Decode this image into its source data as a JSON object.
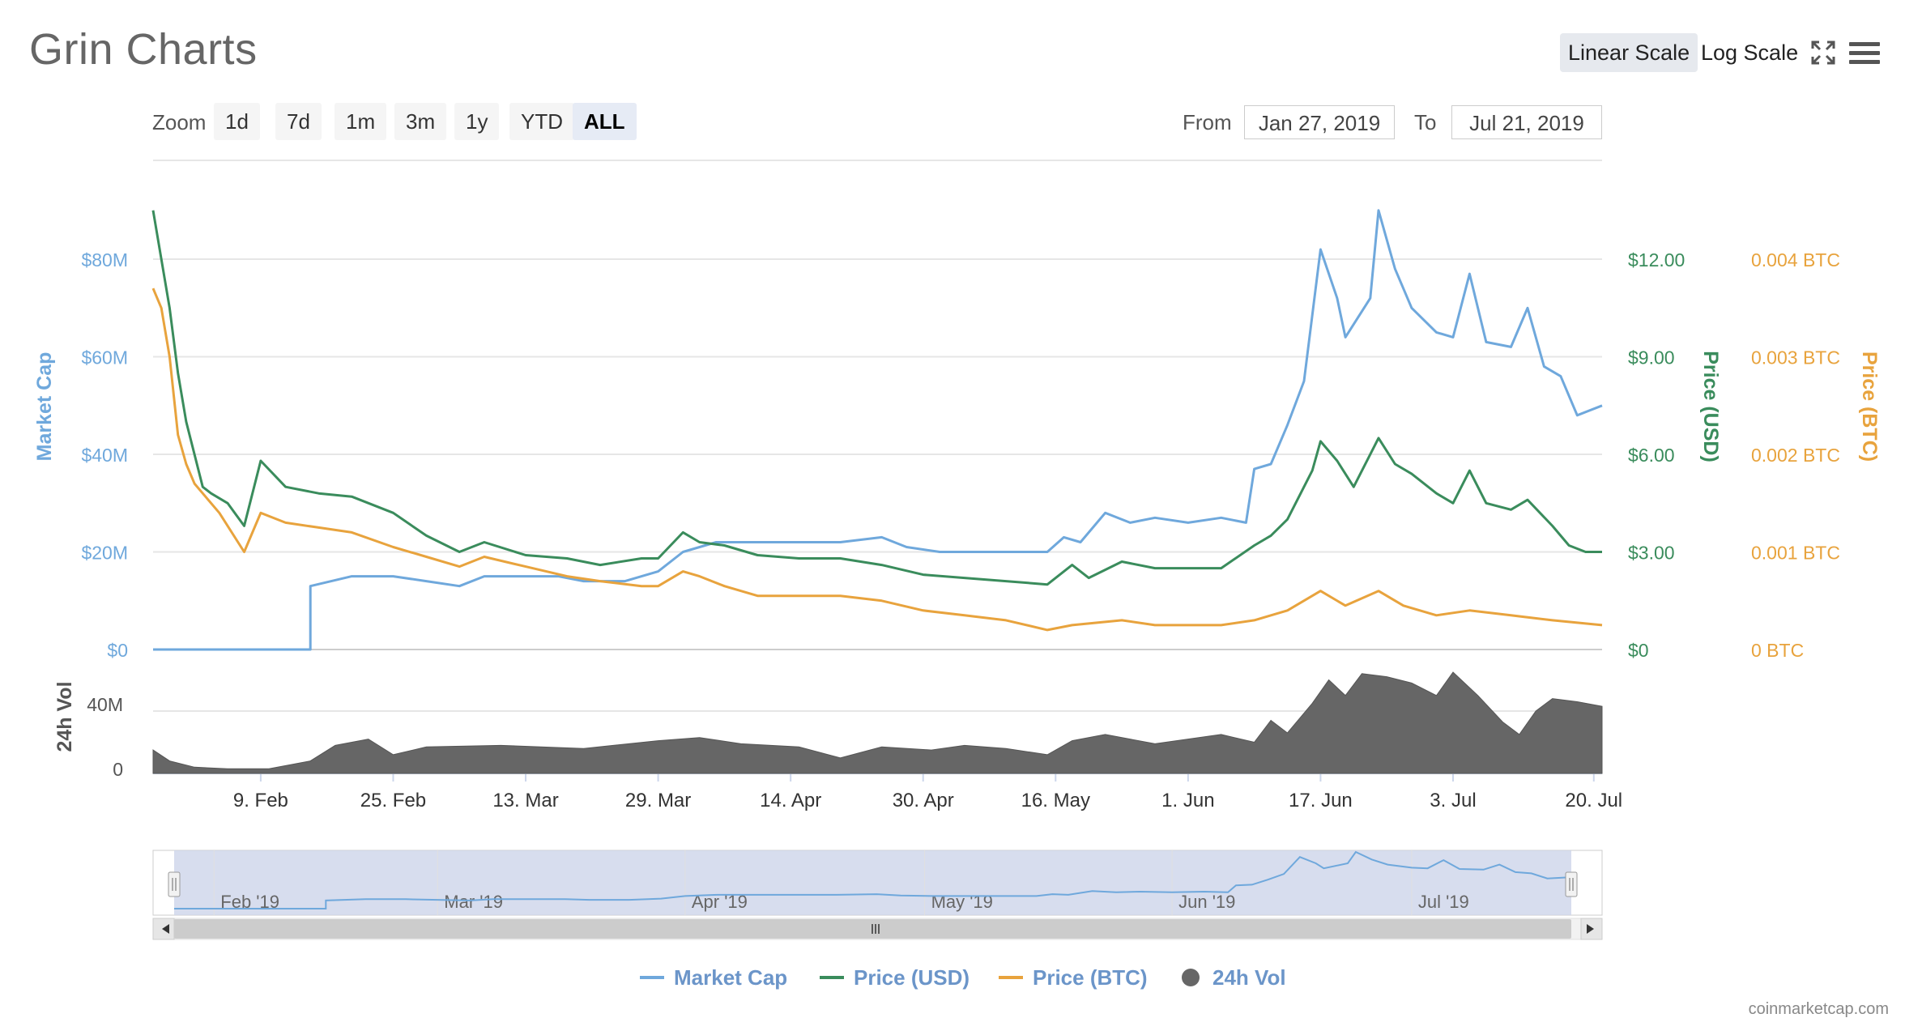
{
  "header": {
    "title": "Grin Charts",
    "linear_label": "Linear Scale",
    "log_label": "Log Scale"
  },
  "zoom": {
    "label": "Zoom",
    "buttons": [
      "1d",
      "7d",
      "1m",
      "3m",
      "1y",
      "YTD",
      "ALL"
    ],
    "active": "ALL"
  },
  "range": {
    "from_label": "From",
    "from_value": "Jan 27, 2019",
    "to_label": "To",
    "to_value": "Jul 21, 2019"
  },
  "credit": "coinmarketcap.com",
  "colors": {
    "market_cap": "#6fa8dc",
    "price_usd": "#3a8c5c",
    "price_btc": "#e8a33d",
    "volume": "#666666",
    "navigator_fill": "#cdd5ea"
  },
  "chart_data": {
    "type": "line",
    "x_range": [
      "2019-01-27",
      "2019-07-21"
    ],
    "x_ticks": [
      "9. Feb",
      "25. Feb",
      "13. Mar",
      "29. Mar",
      "14. Apr",
      "30. Apr",
      "16. May",
      "1. Jun",
      "17. Jun",
      "3. Jul",
      "20. Jul"
    ],
    "x_tick_dates": [
      "2019-02-09",
      "2019-02-25",
      "2019-03-13",
      "2019-03-29",
      "2019-04-14",
      "2019-04-30",
      "2019-05-16",
      "2019-06-01",
      "2019-06-17",
      "2019-07-03",
      "2019-07-20"
    ],
    "axes": {
      "market_cap": {
        "label": "Market Cap",
        "range": [
          0,
          80000000
        ],
        "ticks": [
          "$0",
          "$20M",
          "$40M",
          "$60M",
          "$80M"
        ]
      },
      "price_usd": {
        "label": "Price (USD)",
        "range": [
          0,
          12
        ],
        "ticks": [
          "$0",
          "$3.00",
          "$6.00",
          "$9.00",
          "$12.00"
        ]
      },
      "price_btc": {
        "label": "Price (BTC)",
        "range": [
          0,
          0.004
        ],
        "ticks": [
          "0 BTC",
          "0.001 BTC",
          "0.002 BTC",
          "0.003 BTC",
          "0.004 BTC"
        ]
      },
      "volume": {
        "label": "24h Vol",
        "range": [
          0,
          40000000
        ],
        "ticks": [
          "0",
          "40M"
        ]
      }
    },
    "grid": true,
    "legend_position": "bottom",
    "series": [
      {
        "name": "Market Cap",
        "axis": "market_cap",
        "points": [
          [
            "2019-01-27",
            0
          ],
          [
            "2019-02-15",
            0
          ],
          [
            "2019-02-15",
            13000000
          ],
          [
            "2019-02-20",
            15000000
          ],
          [
            "2019-02-25",
            15000000
          ],
          [
            "2019-03-01",
            14000000
          ],
          [
            "2019-03-05",
            13000000
          ],
          [
            "2019-03-08",
            15000000
          ],
          [
            "2019-03-13",
            15000000
          ],
          [
            "2019-03-17",
            15000000
          ],
          [
            "2019-03-20",
            14000000
          ],
          [
            "2019-03-25",
            14000000
          ],
          [
            "2019-03-29",
            16000000
          ],
          [
            "2019-04-01",
            20000000
          ],
          [
            "2019-04-05",
            22000000
          ],
          [
            "2019-04-10",
            22000000
          ],
          [
            "2019-04-15",
            22000000
          ],
          [
            "2019-04-20",
            22000000
          ],
          [
            "2019-04-25",
            23000000
          ],
          [
            "2019-04-28",
            21000000
          ],
          [
            "2019-05-02",
            20000000
          ],
          [
            "2019-05-05",
            20000000
          ],
          [
            "2019-05-10",
            20000000
          ],
          [
            "2019-05-15",
            20000000
          ],
          [
            "2019-05-17",
            23000000
          ],
          [
            "2019-05-19",
            22000000
          ],
          [
            "2019-05-22",
            28000000
          ],
          [
            "2019-05-25",
            26000000
          ],
          [
            "2019-05-28",
            27000000
          ],
          [
            "2019-06-01",
            26000000
          ],
          [
            "2019-06-05",
            27000000
          ],
          [
            "2019-06-08",
            26000000
          ],
          [
            "2019-06-09",
            37000000
          ],
          [
            "2019-06-11",
            38000000
          ],
          [
            "2019-06-13",
            46000000
          ],
          [
            "2019-06-15",
            55000000
          ],
          [
            "2019-06-17",
            82000000
          ],
          [
            "2019-06-19",
            72000000
          ],
          [
            "2019-06-20",
            64000000
          ],
          [
            "2019-06-23",
            72000000
          ],
          [
            "2019-06-24",
            90000000
          ],
          [
            "2019-06-26",
            78000000
          ],
          [
            "2019-06-28",
            70000000
          ],
          [
            "2019-07-01",
            65000000
          ],
          [
            "2019-07-03",
            64000000
          ],
          [
            "2019-07-05",
            77000000
          ],
          [
            "2019-07-07",
            63000000
          ],
          [
            "2019-07-10",
            62000000
          ],
          [
            "2019-07-12",
            70000000
          ],
          [
            "2019-07-14",
            58000000
          ],
          [
            "2019-07-16",
            56000000
          ],
          [
            "2019-07-18",
            48000000
          ],
          [
            "2019-07-21",
            50000000
          ]
        ]
      },
      {
        "name": "Price (USD)",
        "axis": "price_usd",
        "points": [
          [
            "2019-01-27",
            13.5
          ],
          [
            "2019-01-28",
            12.0
          ],
          [
            "2019-01-29",
            10.5
          ],
          [
            "2019-01-30",
            8.5
          ],
          [
            "2019-01-31",
            7.0
          ],
          [
            "2019-02-01",
            6.0
          ],
          [
            "2019-02-02",
            5.0
          ],
          [
            "2019-02-03",
            4.8
          ],
          [
            "2019-02-05",
            4.5
          ],
          [
            "2019-02-07",
            3.8
          ],
          [
            "2019-02-09",
            5.8
          ],
          [
            "2019-02-12",
            5.0
          ],
          [
            "2019-02-16",
            4.8
          ],
          [
            "2019-02-20",
            4.7
          ],
          [
            "2019-02-25",
            4.2
          ],
          [
            "2019-03-01",
            3.5
          ],
          [
            "2019-03-05",
            3.0
          ],
          [
            "2019-03-08",
            3.3
          ],
          [
            "2019-03-13",
            2.9
          ],
          [
            "2019-03-18",
            2.8
          ],
          [
            "2019-03-22",
            2.6
          ],
          [
            "2019-03-27",
            2.8
          ],
          [
            "2019-03-29",
            2.8
          ],
          [
            "2019-04-01",
            3.6
          ],
          [
            "2019-04-03",
            3.3
          ],
          [
            "2019-04-06",
            3.2
          ],
          [
            "2019-04-10",
            2.9
          ],
          [
            "2019-04-15",
            2.8
          ],
          [
            "2019-04-20",
            2.8
          ],
          [
            "2019-04-25",
            2.6
          ],
          [
            "2019-04-30",
            2.3
          ],
          [
            "2019-05-05",
            2.2
          ],
          [
            "2019-05-10",
            2.1
          ],
          [
            "2019-05-15",
            2.0
          ],
          [
            "2019-05-18",
            2.6
          ],
          [
            "2019-05-20",
            2.2
          ],
          [
            "2019-05-24",
            2.7
          ],
          [
            "2019-05-28",
            2.5
          ],
          [
            "2019-06-01",
            2.5
          ],
          [
            "2019-06-05",
            2.5
          ],
          [
            "2019-06-09",
            3.2
          ],
          [
            "2019-06-11",
            3.5
          ],
          [
            "2019-06-13",
            4.0
          ],
          [
            "2019-06-16",
            5.5
          ],
          [
            "2019-06-17",
            6.4
          ],
          [
            "2019-06-19",
            5.8
          ],
          [
            "2019-06-21",
            5.0
          ],
          [
            "2019-06-24",
            6.5
          ],
          [
            "2019-06-26",
            5.7
          ],
          [
            "2019-06-28",
            5.4
          ],
          [
            "2019-07-01",
            4.8
          ],
          [
            "2019-07-03",
            4.5
          ],
          [
            "2019-07-05",
            5.5
          ],
          [
            "2019-07-07",
            4.5
          ],
          [
            "2019-07-10",
            4.3
          ],
          [
            "2019-07-12",
            4.6
          ],
          [
            "2019-07-15",
            3.8
          ],
          [
            "2019-07-17",
            3.2
          ],
          [
            "2019-07-19",
            3.0
          ],
          [
            "2019-07-21",
            3.0
          ]
        ]
      },
      {
        "name": "Price (BTC)",
        "axis": "price_btc",
        "points": [
          [
            "2019-01-27",
            0.0037
          ],
          [
            "2019-01-28",
            0.0035
          ],
          [
            "2019-01-29",
            0.003
          ],
          [
            "2019-01-30",
            0.0022
          ],
          [
            "2019-01-31",
            0.0019
          ],
          [
            "2019-02-01",
            0.0017
          ],
          [
            "2019-02-02",
            0.0016
          ],
          [
            "2019-02-04",
            0.0014
          ],
          [
            "2019-02-07",
            0.001
          ],
          [
            "2019-02-09",
            0.0014
          ],
          [
            "2019-02-12",
            0.0013
          ],
          [
            "2019-02-16",
            0.00125
          ],
          [
            "2019-02-20",
            0.0012
          ],
          [
            "2019-02-25",
            0.00105
          ],
          [
            "2019-03-01",
            0.00095
          ],
          [
            "2019-03-05",
            0.00085
          ],
          [
            "2019-03-08",
            0.00095
          ],
          [
            "2019-03-13",
            0.00085
          ],
          [
            "2019-03-18",
            0.00075
          ],
          [
            "2019-03-22",
            0.0007
          ],
          [
            "2019-03-27",
            0.00065
          ],
          [
            "2019-03-29",
            0.00065
          ],
          [
            "2019-04-01",
            0.0008
          ],
          [
            "2019-04-03",
            0.00075
          ],
          [
            "2019-04-06",
            0.00065
          ],
          [
            "2019-04-10",
            0.00055
          ],
          [
            "2019-04-15",
            0.00055
          ],
          [
            "2019-04-20",
            0.00055
          ],
          [
            "2019-04-25",
            0.0005
          ],
          [
            "2019-04-30",
            0.0004
          ],
          [
            "2019-05-05",
            0.00035
          ],
          [
            "2019-05-10",
            0.0003
          ],
          [
            "2019-05-15",
            0.0002
          ],
          [
            "2019-05-18",
            0.00025
          ],
          [
            "2019-05-24",
            0.0003
          ],
          [
            "2019-05-28",
            0.00025
          ],
          [
            "2019-06-01",
            0.00025
          ],
          [
            "2019-06-05",
            0.00025
          ],
          [
            "2019-06-09",
            0.0003
          ],
          [
            "2019-06-13",
            0.0004
          ],
          [
            "2019-06-17",
            0.0006
          ],
          [
            "2019-06-20",
            0.00045
          ],
          [
            "2019-06-24",
            0.0006
          ],
          [
            "2019-06-27",
            0.00045
          ],
          [
            "2019-07-01",
            0.00035
          ],
          [
            "2019-07-05",
            0.0004
          ],
          [
            "2019-07-10",
            0.00035
          ],
          [
            "2019-07-15",
            0.0003
          ],
          [
            "2019-07-21",
            0.00025
          ]
        ]
      },
      {
        "name": "24h Vol",
        "axis": "volume",
        "type": "area",
        "points": [
          [
            "2019-01-27",
            15000000
          ],
          [
            "2019-01-29",
            8000000
          ],
          [
            "2019-02-01",
            4000000
          ],
          [
            "2019-02-05",
            3000000
          ],
          [
            "2019-02-10",
            3000000
          ],
          [
            "2019-02-15",
            8000000
          ],
          [
            "2019-02-18",
            18000000
          ],
          [
            "2019-02-22",
            22000000
          ],
          [
            "2019-02-25",
            12000000
          ],
          [
            "2019-03-01",
            17000000
          ],
          [
            "2019-03-10",
            18000000
          ],
          [
            "2019-03-20",
            16000000
          ],
          [
            "2019-03-29",
            21000000
          ],
          [
            "2019-04-03",
            23000000
          ],
          [
            "2019-04-08",
            19000000
          ],
          [
            "2019-04-15",
            17000000
          ],
          [
            "2019-04-20",
            10000000
          ],
          [
            "2019-04-25",
            17000000
          ],
          [
            "2019-05-01",
            15000000
          ],
          [
            "2019-05-05",
            18000000
          ],
          [
            "2019-05-10",
            16000000
          ],
          [
            "2019-05-15",
            12000000
          ],
          [
            "2019-05-18",
            21000000
          ],
          [
            "2019-05-22",
            25000000
          ],
          [
            "2019-05-28",
            19000000
          ],
          [
            "2019-06-01",
            22000000
          ],
          [
            "2019-06-05",
            25000000
          ],
          [
            "2019-06-09",
            20000000
          ],
          [
            "2019-06-11",
            34000000
          ],
          [
            "2019-06-13",
            26000000
          ],
          [
            "2019-06-16",
            45000000
          ],
          [
            "2019-06-18",
            60000000
          ],
          [
            "2019-06-20",
            50000000
          ],
          [
            "2019-06-22",
            64000000
          ],
          [
            "2019-06-25",
            62000000
          ],
          [
            "2019-06-28",
            58000000
          ],
          [
            "2019-07-01",
            50000000
          ],
          [
            "2019-07-03",
            65000000
          ],
          [
            "2019-07-06",
            50000000
          ],
          [
            "2019-07-09",
            33000000
          ],
          [
            "2019-07-11",
            25000000
          ],
          [
            "2019-07-13",
            40000000
          ],
          [
            "2019-07-15",
            48000000
          ],
          [
            "2019-07-18",
            46000000
          ],
          [
            "2019-07-21",
            43000000
          ]
        ]
      }
    ],
    "legend": [
      "Market Cap",
      "Price (USD)",
      "Price (BTC)",
      "24h Vol"
    ],
    "navigator": {
      "labels": [
        "Feb '19",
        "Mar '19",
        "Apr '19",
        "May '19",
        "Jun '19",
        "Jul '19"
      ],
      "label_dates": [
        "2019-02-01",
        "2019-03-01",
        "2019-04-01",
        "2019-05-01",
        "2019-06-01",
        "2019-07-01"
      ]
    }
  }
}
